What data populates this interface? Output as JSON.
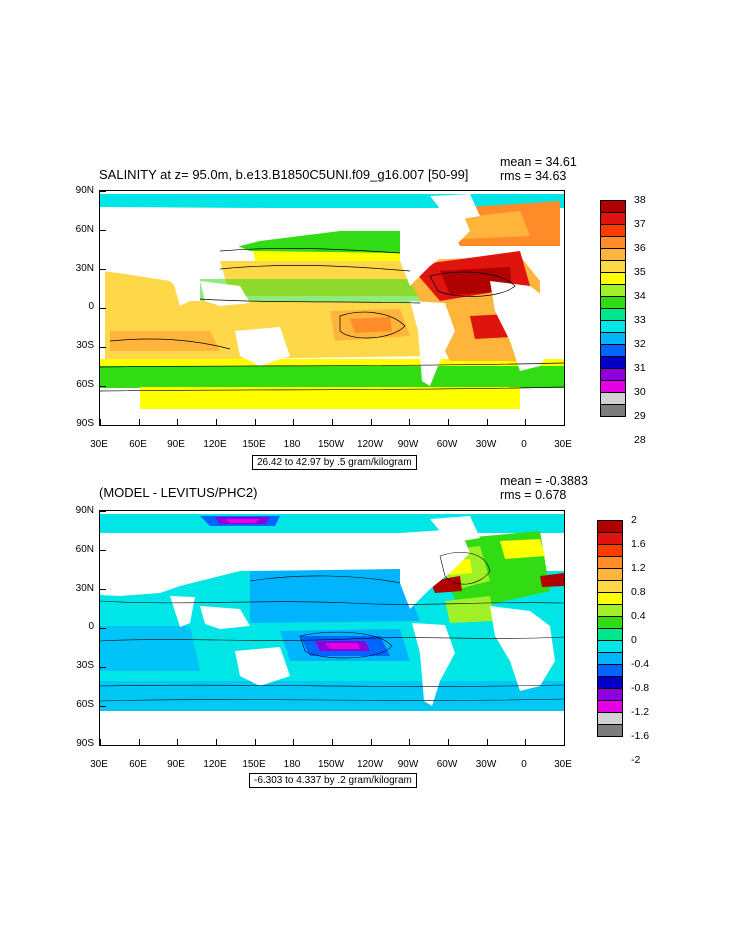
{
  "maps": [
    {
      "id": "salinity",
      "title": "SALINITY at z=  95.0m, b.e13.B1850C5UNI.f09_g16.007 [50-99]",
      "mean": "mean = 34.61",
      "rms": "rms = 34.63",
      "caption": "26.42 to 42.97 by .5 gram/kilogram",
      "y_ticks": [
        "90N",
        "60N",
        "30N",
        "0",
        "30S",
        "60S",
        "90S"
      ],
      "x_ticks": [
        "30E",
        "60E",
        "90E",
        "120E",
        "150E",
        "180",
        "150W",
        "120W",
        "90W",
        "60W",
        "30W",
        "0",
        "30E"
      ],
      "legend": {
        "labels": [
          "38",
          "37",
          "36",
          "35",
          "34",
          "33",
          "32",
          "31",
          "30",
          "29",
          "28"
        ],
        "colors": [
          "#b00000",
          "#e0140e",
          "#ff3c00",
          "#ff8c28",
          "#ffb43c",
          "#ffd84a",
          "#ffff00",
          "#a0f028",
          "#32dc14",
          "#00e68c",
          "#00e6e6",
          "#00b4ff",
          "#0064ff",
          "#0000c8",
          "#8c00dc",
          "#e600e6",
          "#d2d2d2",
          "#7d7d7d"
        ]
      }
    },
    {
      "id": "difference",
      "title": "(MODEL - LEVITUS/PHC2)",
      "mean": "mean = -0.3883",
      "rms": "rms = 0.678",
      "caption": "-6.303 to 4.337 by .2 gram/kilogram",
      "y_ticks": [
        "90N",
        "60N",
        "30N",
        "0",
        "30S",
        "60S",
        "90S"
      ],
      "x_ticks": [
        "30E",
        "60E",
        "90E",
        "120E",
        "150E",
        "180",
        "150W",
        "120W",
        "90W",
        "60W",
        "30W",
        "0",
        "30E"
      ],
      "legend": {
        "labels": [
          "2",
          "1.6",
          "1.2",
          "0.8",
          "0.4",
          "0",
          "-0.4",
          "-0.8",
          "-1.2",
          "-1.6",
          "-2"
        ],
        "colors": [
          "#b00000",
          "#e0140e",
          "#ff3c00",
          "#ff8c28",
          "#ffb43c",
          "#ffd84a",
          "#ffff00",
          "#a0f028",
          "#32dc14",
          "#00e68c",
          "#00e6e6",
          "#00b4ff",
          "#0064ff",
          "#0000c8",
          "#8c00dc",
          "#e600e6",
          "#d2d2d2",
          "#7d7d7d"
        ]
      }
    }
  ]
}
